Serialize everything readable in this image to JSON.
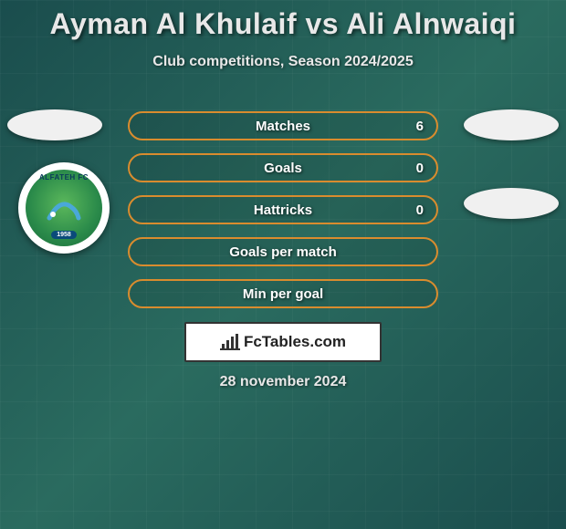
{
  "title": "Ayman Al Khulaif vs Ali Alnwaiqi",
  "subtitle": "Club competitions, Season 2024/2025",
  "club_logo": {
    "name": "ALFATEH FC",
    "year": "1958",
    "bg_outer": "#ffffff",
    "bg_inner_from": "#5bb85b",
    "bg_inner_to": "#1a6b3a",
    "text_color": "#0a3a5a",
    "swoosh_color": "#4aa8d8"
  },
  "placeholder_color": "#f0f0f0",
  "stats": [
    {
      "label": "Matches",
      "value": "6",
      "border": "#d98c2e",
      "fill_color": "#d98c2e",
      "fill_pct": 0
    },
    {
      "label": "Goals",
      "value": "0",
      "border": "#d98c2e",
      "fill_color": "#d98c2e",
      "fill_pct": 0
    },
    {
      "label": "Hattricks",
      "value": "0",
      "border": "#d98c2e",
      "fill_color": "#d98c2e",
      "fill_pct": 0
    },
    {
      "label": "Goals per match",
      "value": "",
      "border": "#d98c2e",
      "fill_color": "#d98c2e",
      "fill_pct": 0
    },
    {
      "label": "Min per goal",
      "value": "",
      "border": "#d98c2e",
      "fill_color": "#d98c2e",
      "fill_pct": 0
    }
  ],
  "footer": {
    "brand": "FcTables.com",
    "date": "28 november 2024",
    "box_border": "#333333",
    "box_bg": "#ffffff"
  },
  "style": {
    "bg_from": "#1a4d4d",
    "bg_to": "#1a4d4d",
    "title_color": "#e8e8e8",
    "title_fontsize": 32,
    "subtitle_fontsize": 16,
    "stat_text_color": "#ffffff",
    "stat_height": 32,
    "stat_gap": 14
  }
}
